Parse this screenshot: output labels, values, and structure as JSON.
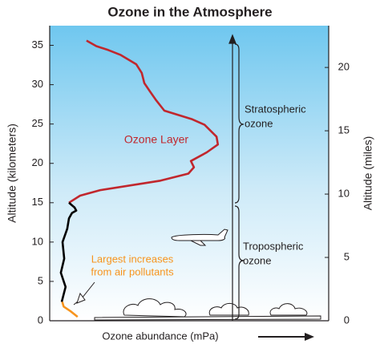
{
  "chart_data": {
    "type": "line",
    "title": "Ozone in the Atmosphere",
    "x_label": "Ozone abundance (mPa)",
    "y_label": "Altitude (kilometers)",
    "y2_label": "Altitude (miles)",
    "xlim": [
      0,
      10
    ],
    "ylim": [
      0,
      37.5
    ],
    "yticks": [
      0,
      5,
      10,
      15,
      20,
      25,
      30,
      35
    ],
    "y2lim": [
      0,
      23.3
    ],
    "y2ticks": [
      0,
      5,
      10,
      15,
      20
    ],
    "series": [
      {
        "name": "Ozone Layer",
        "color": "#c1272d",
        "x": [
          0.69,
          1.09,
          1.81,
          3.97,
          4.97,
          5.17,
          5.06,
          5.63,
          6.03,
          5.98,
          5.55,
          5.11,
          4.11,
          3.82,
          3.62,
          3.39,
          3.3,
          3.1,
          2.53,
          2.1,
          1.67,
          1.32
        ],
        "values": [
          15.0,
          15.9,
          16.6,
          17.8,
          18.7,
          19.5,
          20.3,
          21.4,
          22.4,
          23.4,
          24.9,
          25.6,
          26.7,
          28.0,
          29.0,
          30.2,
          31.5,
          32.6,
          33.8,
          34.4,
          34.9,
          35.6
        ]
      },
      {
        "color": "#000000",
        "x": [
          0.43,
          0.57,
          0.4,
          0.52,
          0.46,
          0.63,
          0.69,
          0.8,
          0.95,
          0.89,
          0.69
        ],
        "values": [
          2.4,
          4.3,
          6.1,
          7.9,
          10.0,
          11.7,
          13.0,
          13.7,
          14.0,
          14.4,
          15.0
        ]
      },
      {
        "color": "#f7941d",
        "x": [
          1.0,
          0.75,
          0.5,
          0.45
        ],
        "values": [
          0.5,
          1.2,
          1.8,
          2.4
        ]
      }
    ],
    "annotations": {
      "pollutants": [
        "Largest increases",
        "from air pollutants"
      ],
      "stratospheric": [
        "Stratospheric",
        "ozone"
      ],
      "tropospheric": [
        "Tropospheric",
        "ozone"
      ]
    }
  }
}
